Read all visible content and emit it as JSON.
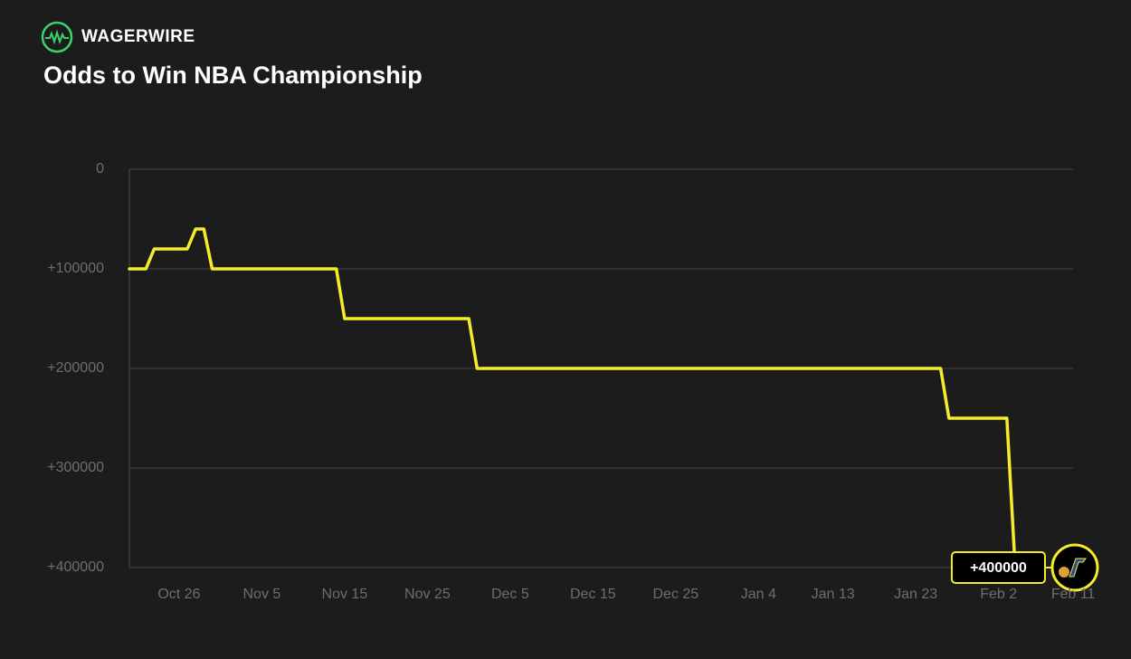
{
  "brand": "WAGERWIRE",
  "chart_data": {
    "type": "line",
    "title": "Odds to Win NBA Championship",
    "x": [
      "Oct 20",
      "Oct 22",
      "Oct 23",
      "Oct 27",
      "Oct 28",
      "Oct 29",
      "Oct 30",
      "Nov 14",
      "Nov 15",
      "Nov 30",
      "Dec 1",
      "Jan 26",
      "Jan 27",
      "Feb 3",
      "Feb 4"
    ],
    "series": [
      {
        "color": "#f5ec2c",
        "values": [
          100000,
          100000,
          80000,
          80000,
          60000,
          60000,
          100000,
          100000,
          150000,
          150000,
          200000,
          200000,
          250000,
          250000,
          400000
        ],
        "value_labels": [
          null,
          null,
          null,
          null,
          null,
          null,
          null,
          null,
          null,
          null,
          null,
          null,
          null,
          null,
          "+400000"
        ]
      }
    ],
    "xlim": [
      "Oct 20",
      "Feb 11"
    ],
    "xticks": [
      "Oct 26",
      "Nov 5",
      "Nov 15",
      "Nov 25",
      "Dec 5",
      "Dec 15",
      "Dec 25",
      "Jan 4",
      "Jan 13",
      "Jan 23",
      "Feb 2",
      "Feb 11"
    ],
    "ylim": [
      0,
      400000
    ],
    "y_inverted": true,
    "yticks": [
      0,
      {
        "value": 100000,
        "label": "+100000"
      },
      {
        "value": 200000,
        "label": "+200000"
      },
      {
        "value": 300000,
        "label": "+300000"
      },
      {
        "value": 400000,
        "label": "+400000"
      }
    ],
    "grid": true
  }
}
